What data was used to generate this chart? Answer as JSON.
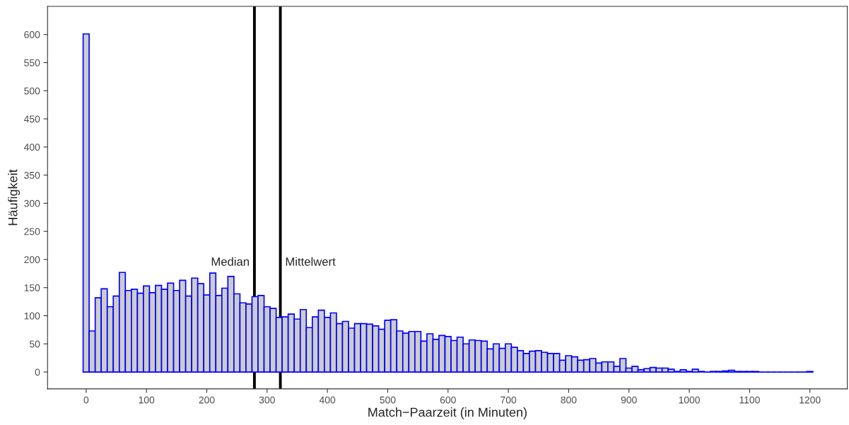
{
  "chart_data": {
    "type": "histogram",
    "xlabel": "Match−Paarzeit (in Minuten)",
    "ylabel": "Häufigkeit",
    "bins": [
      -5,
      5,
      15,
      25,
      35,
      45,
      55,
      65,
      75,
      85,
      95,
      105,
      115,
      125,
      135,
      145,
      155,
      165,
      175,
      185,
      195,
      205,
      215,
      225,
      235,
      245,
      255,
      265,
      275,
      285,
      295,
      305,
      315,
      325,
      335,
      345,
      355,
      365,
      375,
      385,
      395,
      405,
      415,
      425,
      435,
      445,
      455,
      465,
      475,
      485,
      495,
      505,
      515,
      525,
      535,
      545,
      555,
      565,
      575,
      585,
      595,
      605,
      615,
      625,
      635,
      645,
      655,
      665,
      675,
      685,
      695,
      705,
      715,
      725,
      735,
      745,
      755,
      765,
      775,
      785,
      795,
      805,
      815,
      825,
      835,
      845,
      855,
      865,
      875,
      885,
      895,
      905,
      915,
      925,
      935,
      945,
      955,
      965,
      975,
      985,
      995,
      1005,
      1015,
      1025,
      1035,
      1045,
      1055,
      1065,
      1075,
      1085,
      1095,
      1105,
      1115,
      1125,
      1135,
      1145,
      1155,
      1165,
      1175,
      1185,
      1195,
      1205
    ],
    "values": [
      601,
      73,
      132,
      148,
      116,
      135,
      177,
      145,
      147,
      140,
      153,
      141,
      154,
      147,
      158,
      145,
      163,
      135,
      167,
      157,
      137,
      176,
      136,
      149,
      170,
      139,
      123,
      121,
      134,
      136,
      116,
      113,
      97,
      98,
      103,
      94,
      111,
      79,
      98,
      110,
      97,
      105,
      86,
      90,
      78,
      86,
      86,
      85,
      82,
      76,
      92,
      93,
      73,
      69,
      72,
      72,
      55,
      68,
      58,
      65,
      63,
      56,
      62,
      50,
      57,
      56,
      55,
      41,
      50,
      42,
      50,
      44,
      38,
      33,
      37,
      38,
      35,
      33,
      33,
      21,
      29,
      27,
      21,
      22,
      24,
      16,
      18,
      18,
      10,
      24,
      7,
      10,
      4,
      6,
      8,
      7,
      7,
      5,
      1,
      4,
      1,
      5,
      1,
      0,
      1,
      1,
      2,
      3,
      1,
      1,
      1,
      1,
      0,
      0,
      0,
      0,
      0,
      0,
      0,
      0,
      1
    ],
    "color": "#0000ff",
    "xlim": [
      -64,
      1262
    ],
    "ylim": [
      -30,
      650
    ],
    "xticks": [
      0,
      100,
      200,
      300,
      400,
      500,
      600,
      700,
      800,
      900,
      1000,
      1100,
      1200
    ],
    "yticks": [
      0,
      50,
      100,
      150,
      200,
      250,
      300,
      350,
      400,
      450,
      500,
      550,
      600
    ],
    "grid": false,
    "ref_lines": [
      {
        "axis": "x",
        "value": 279,
        "label": "Median",
        "color": "#000000"
      },
      {
        "axis": "x",
        "value": 322,
        "label": "Mittelwert",
        "color": "#000000"
      }
    ]
  }
}
